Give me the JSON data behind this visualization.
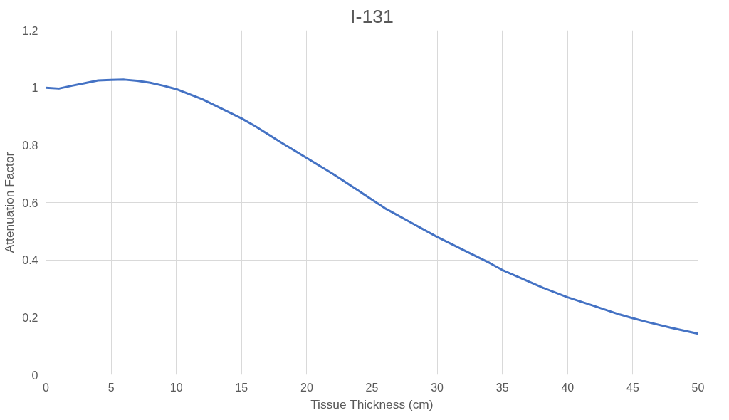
{
  "chart_data": {
    "type": "line",
    "title": "I-131",
    "xlabel": "Tissue Thickness (cm)",
    "ylabel": "Attenuation Factor",
    "x": [
      0,
      1,
      2,
      3,
      4,
      5,
      6,
      7,
      8,
      9,
      10,
      12,
      14,
      15,
      16,
      18,
      20,
      22,
      24,
      25,
      26,
      28,
      30,
      32,
      34,
      35,
      36,
      38,
      40,
      42,
      44,
      45,
      46,
      48,
      50
    ],
    "series": [
      {
        "color": "#4472c4",
        "values": [
          1.0,
          0.997,
          1.007,
          1.016,
          1.025,
          1.027,
          1.028,
          1.024,
          1.017,
          1.007,
          0.995,
          0.96,
          0.915,
          0.893,
          0.867,
          0.81,
          0.755,
          0.7,
          0.64,
          0.61,
          0.58,
          0.53,
          0.48,
          0.435,
          0.39,
          0.365,
          0.345,
          0.305,
          0.27,
          0.24,
          0.21,
          0.197,
          0.185,
          0.163,
          0.143
        ]
      }
    ],
    "xlim": [
      0,
      50
    ],
    "ylim": [
      0,
      1.2
    ],
    "xticks": [
      0,
      5,
      10,
      15,
      20,
      25,
      30,
      35,
      40,
      45,
      50
    ],
    "yticks": [
      0,
      0.2,
      0.4,
      0.6,
      0.8,
      1,
      1.2
    ],
    "grid": true,
    "marker": "none",
    "line_style": "solid"
  }
}
